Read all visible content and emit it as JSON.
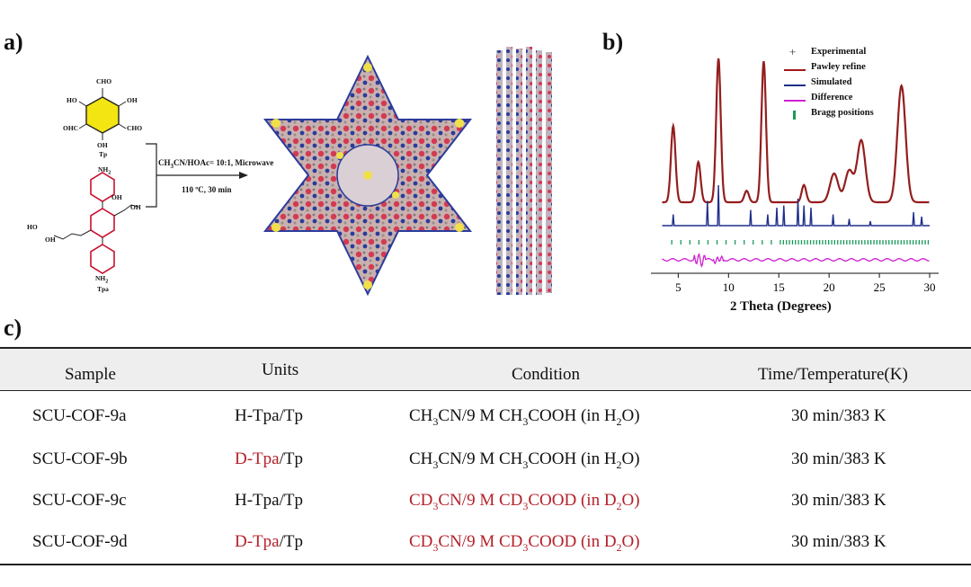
{
  "panel_a": {
    "label": "a)",
    "tp": {
      "cho_top": "CHO",
      "ho_left": "HO",
      "oh_right": "OH",
      "ohc_left": "OHC",
      "cho_right": "CHO",
      "oh_bottom": "OH",
      "name": "Tp"
    },
    "tpa": {
      "nh2_top": "NH",
      "nh2_top_sub": "2",
      "oh_top_right": "OH",
      "oh_right": "OH",
      "ho_left": "HO",
      "oh_left2": "OH",
      "nh2_bottom": "NH",
      "nh2_bottom_sub": "2",
      "name": "Tpa"
    },
    "condition_line1_pre": "CH",
    "condition_line1_sub": "3",
    "condition_line1_post": "CN/HOAc= 10:1, Microwave",
    "condition_line2": "110 ºC, 30 min"
  },
  "panel_b": {
    "label": "b)",
    "legend": [
      {
        "label": "Experimental",
        "color": "#333333"
      },
      {
        "label": "Pawley refine",
        "color": "#a01818"
      },
      {
        "label": "Simulated",
        "color": "#1f2f8a"
      },
      {
        "label": "Difference",
        "color": "#d020d0"
      },
      {
        "label": "Bragg positions",
        "color": "#1a9a5a"
      }
    ],
    "xlabel": "2 Theta (Degrees)",
    "x_ticks": [
      "5",
      "10",
      "15",
      "20",
      "25",
      "30"
    ]
  },
  "chart_data": {
    "type": "line",
    "xlabel": "2 Theta (Degrees)",
    "xlim": [
      3,
      30
    ],
    "x_ticks": [
      5,
      10,
      15,
      20,
      25,
      30
    ],
    "series": [
      {
        "name": "Pawley refine",
        "peaks_2theta": [
          4.5,
          7.0,
          9.0,
          11.8,
          13.5,
          17.5,
          20.5,
          22.0,
          23.2,
          27.2
        ],
        "relative_intensity": [
          0.53,
          0.28,
          1.0,
          0.08,
          0.98,
          0.12,
          0.2,
          0.22,
          0.43,
          0.81
        ]
      },
      {
        "name": "Simulated",
        "peaks_2theta": [
          4.5,
          7.9,
          9.0,
          12.2,
          13.9,
          14.8,
          15.5,
          16.9,
          17.5,
          18.2,
          20.4,
          22.0,
          24.1,
          28.4,
          29.2
        ],
        "relative_intensity": [
          0.25,
          0.55,
          0.9,
          0.35,
          0.25,
          0.4,
          0.45,
          0.6,
          0.45,
          0.4,
          0.25,
          0.15,
          0.1,
          0.3,
          0.2
        ]
      },
      {
        "name": "Difference"
      },
      {
        "name": "Bragg positions"
      },
      {
        "name": "Experimental"
      }
    ]
  },
  "panel_c": {
    "label": "c)",
    "headers": [
      "Sample",
      "Units",
      "Condition",
      "Time/Temperature(K)"
    ],
    "rows": [
      {
        "sample": "SCU-COF-9a",
        "unit_a": "H-Tpa",
        "unit_b": "/Tp",
        "cond_red": false,
        "c1": "CH",
        "c1s": "3",
        "c2": "CN/9 M CH",
        "c2s": "3",
        "c3": "COOH (in H",
        "c3s": "2",
        "c4": "O)",
        "time": "30 min/383 K"
      },
      {
        "sample": "SCU-COF-9b",
        "unit_a": "D-Tpa",
        "unit_b": "/Tp",
        "cond_red": false,
        "c1": "CH",
        "c1s": "3",
        "c2": "CN/9 M CH",
        "c2s": "3",
        "c3": "COOH (in H",
        "c3s": "2",
        "c4": "O)",
        "time": "30 min/383 K"
      },
      {
        "sample": "SCU-COF-9c",
        "unit_a": "H-Tpa",
        "unit_b": "/Tp",
        "cond_red": true,
        "c1": "CD",
        "c1s": "3",
        "c2": "CN/9 M CD",
        "c2s": "3",
        "c3": "COOD (in D",
        "c3s": "2",
        "c4": "O)",
        "time": "30 min/383 K"
      },
      {
        "sample": "SCU-COF-9d",
        "unit_a": "D-Tpa",
        "unit_b": "/Tp",
        "cond_red": true,
        "c1": "CD",
        "c1s": "3",
        "c2": "CN/9 M CD",
        "c2s": "3",
        "c3": "COOD (in D",
        "c3s": "2",
        "c4": "O)",
        "time": "30 min/383 K"
      }
    ]
  }
}
